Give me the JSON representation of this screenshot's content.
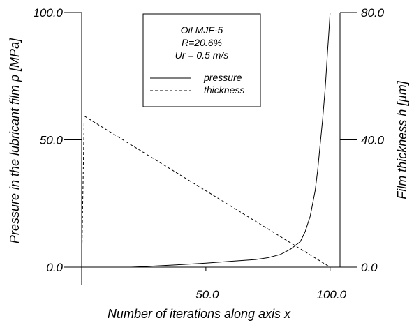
{
  "chart_data": {
    "type": "line",
    "xlabel": "Number of iterations along axis x",
    "ylabel_left": "Pressure in the lubricant film p [MPa]",
    "ylabel_right": "Film thickness h [µm]",
    "xlim": [
      0,
      104
    ],
    "ylim_left": [
      0,
      100
    ],
    "ylim_right": [
      0,
      80
    ],
    "x_ticks": [
      "50.0",
      "100.0"
    ],
    "x_tick_values": [
      50,
      100
    ],
    "y_left_ticks": [
      "0.0",
      "50.0",
      "100.0"
    ],
    "y_left_tick_values": [
      0,
      50,
      100
    ],
    "y_right_ticks": [
      "0.0",
      "40.0",
      "80.0"
    ],
    "y_right_tick_values": [
      0,
      40,
      80
    ],
    "grid": false,
    "legend_placement": "top-center",
    "annotation": {
      "line1": "Oil  MJF-5",
      "line2": "R=20.6%",
      "line3": "Ur = 0.5 m/s"
    },
    "series": [
      {
        "name": "pressure",
        "axis": "left",
        "style": "solid",
        "x": [
          0,
          10,
          20,
          25,
          30,
          40,
          50,
          60,
          70,
          75,
          80,
          84,
          88,
          90,
          92,
          94,
          95,
          96,
          97,
          98,
          98.5,
          99,
          99.5,
          100
        ],
        "y": [
          0,
          0,
          0,
          0.2,
          0.5,
          1.0,
          1.6,
          2.3,
          3.0,
          3.7,
          5.0,
          7.0,
          10.0,
          14.0,
          20.0,
          30.0,
          38.0,
          48.0,
          58.0,
          70.0,
          77.0,
          85.0,
          92.0,
          100.0
        ]
      },
      {
        "name": "thickness",
        "axis": "right",
        "style": "dashed",
        "x": [
          0,
          1,
          100
        ],
        "y": [
          0,
          47.5,
          0
        ]
      }
    ]
  }
}
